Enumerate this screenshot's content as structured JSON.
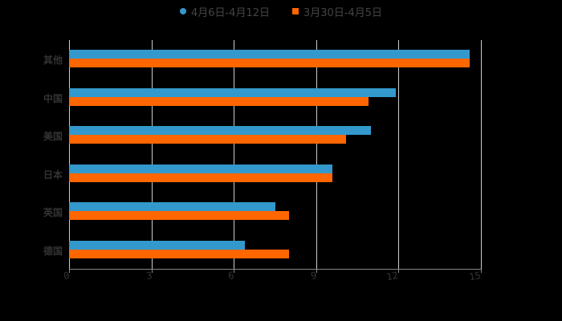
{
  "chart_data": {
    "type": "bar",
    "orientation": "horizontal",
    "title": "",
    "xlabel": "",
    "ylabel": "",
    "xlim": [
      0,
      15
    ],
    "xticks": [
      "0",
      "3",
      "6",
      "9",
      "12",
      "15"
    ],
    "grid": true,
    "legend_position": "top",
    "categories": [
      "其他",
      "中国",
      "美国",
      "日本",
      "英国",
      "德国"
    ],
    "series": [
      {
        "name": "4月6日-4月12日",
        "color": "#3399cc",
        "values": [
          14.6,
          11.9,
          11.0,
          9.6,
          7.5,
          6.4
        ]
      },
      {
        "name": "3月30日-4月5日",
        "color": "#ff6600",
        "values": [
          14.6,
          10.9,
          10.1,
          9.6,
          8.0,
          8.0
        ]
      }
    ]
  },
  "legend": {
    "items": [
      {
        "label": "4月6日-4月12日",
        "color": "#3399cc",
        "shape": "circle"
      },
      {
        "label": "3月30日-4月5日",
        "color": "#ff6600",
        "shape": "square"
      }
    ]
  },
  "axis": {
    "ticks": [
      "0",
      "3",
      "6",
      "9",
      "12",
      "15"
    ]
  },
  "categories": [
    "其他",
    "中国",
    "美国",
    "日本",
    "英国",
    "德国"
  ]
}
